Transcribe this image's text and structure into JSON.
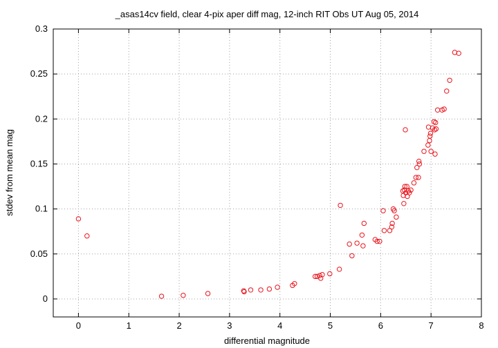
{
  "chart_data": {
    "type": "scatter",
    "title": "_asas14cv field, clear 4-pix aper diff mag,  12-inch RIT Obs UT Aug 05, 2014",
    "xlabel": "differential magnitude",
    "ylabel": "stdev from mean mag",
    "xlim": [
      -0.5,
      8
    ],
    "ylim": [
      -0.02,
      0.3
    ],
    "xticks": [
      0,
      1,
      2,
      3,
      4,
      5,
      6,
      7,
      8
    ],
    "xtick_labels": [
      "0",
      "1",
      "2",
      "3",
      "4",
      "5",
      "6",
      "7",
      "8"
    ],
    "yticks": [
      0,
      0.05,
      0.1,
      0.15,
      0.2,
      0.25,
      0.3
    ],
    "ytick_labels": [
      "0",
      "0.05",
      "0.1",
      "0.15",
      "0.2",
      "0.25",
      "0.3"
    ],
    "grid": true,
    "marker_color": "#e8141c",
    "points": [
      [
        0.0,
        0.089
      ],
      [
        0.17,
        0.07
      ],
      [
        1.65,
        0.003
      ],
      [
        2.08,
        0.004
      ],
      [
        2.57,
        0.006
      ],
      [
        3.28,
        0.009
      ],
      [
        3.29,
        0.008
      ],
      [
        3.42,
        0.01
      ],
      [
        3.62,
        0.01
      ],
      [
        3.79,
        0.011
      ],
      [
        3.95,
        0.013
      ],
      [
        4.25,
        0.015
      ],
      [
        4.29,
        0.017
      ],
      [
        4.7,
        0.025
      ],
      [
        4.74,
        0.025
      ],
      [
        4.79,
        0.026
      ],
      [
        4.81,
        0.023
      ],
      [
        4.84,
        0.027
      ],
      [
        4.99,
        0.028
      ],
      [
        5.18,
        0.033
      ],
      [
        5.2,
        0.104
      ],
      [
        5.38,
        0.061
      ],
      [
        5.43,
        0.048
      ],
      [
        5.53,
        0.062
      ],
      [
        5.63,
        0.071
      ],
      [
        5.65,
        0.059
      ],
      [
        5.67,
        0.084
      ],
      [
        5.89,
        0.066
      ],
      [
        5.93,
        0.064
      ],
      [
        5.98,
        0.064
      ],
      [
        6.05,
        0.098
      ],
      [
        6.07,
        0.076
      ],
      [
        6.18,
        0.076
      ],
      [
        6.22,
        0.08
      ],
      [
        6.23,
        0.084
      ],
      [
        6.25,
        0.1
      ],
      [
        6.27,
        0.098
      ],
      [
        6.31,
        0.091
      ],
      [
        6.44,
        0.12
      ],
      [
        6.45,
        0.115
      ],
      [
        6.46,
        0.106
      ],
      [
        6.47,
        0.121
      ],
      [
        6.48,
        0.125
      ],
      [
        6.49,
        0.188
      ],
      [
        6.5,
        0.118
      ],
      [
        6.52,
        0.125
      ],
      [
        6.53,
        0.114
      ],
      [
        6.55,
        0.12
      ],
      [
        6.57,
        0.118
      ],
      [
        6.6,
        0.121
      ],
      [
        6.66,
        0.129
      ],
      [
        6.7,
        0.135
      ],
      [
        6.72,
        0.146
      ],
      [
        6.75,
        0.135
      ],
      [
        6.76,
        0.153
      ],
      [
        6.77,
        0.15
      ],
      [
        6.86,
        0.164
      ],
      [
        6.94,
        0.171
      ],
      [
        6.95,
        0.191
      ],
      [
        6.97,
        0.176
      ],
      [
        6.98,
        0.181
      ],
      [
        6.99,
        0.184
      ],
      [
        7.0,
        0.164
      ],
      [
        7.03,
        0.19
      ],
      [
        7.06,
        0.197
      ],
      [
        7.07,
        0.188
      ],
      [
        7.08,
        0.161
      ],
      [
        7.09,
        0.196
      ],
      [
        7.1,
        0.189
      ],
      [
        7.13,
        0.21
      ],
      [
        7.22,
        0.21
      ],
      [
        7.26,
        0.211
      ],
      [
        7.31,
        0.231
      ],
      [
        7.37,
        0.243
      ],
      [
        7.47,
        0.274
      ],
      [
        7.55,
        0.273
      ]
    ]
  }
}
